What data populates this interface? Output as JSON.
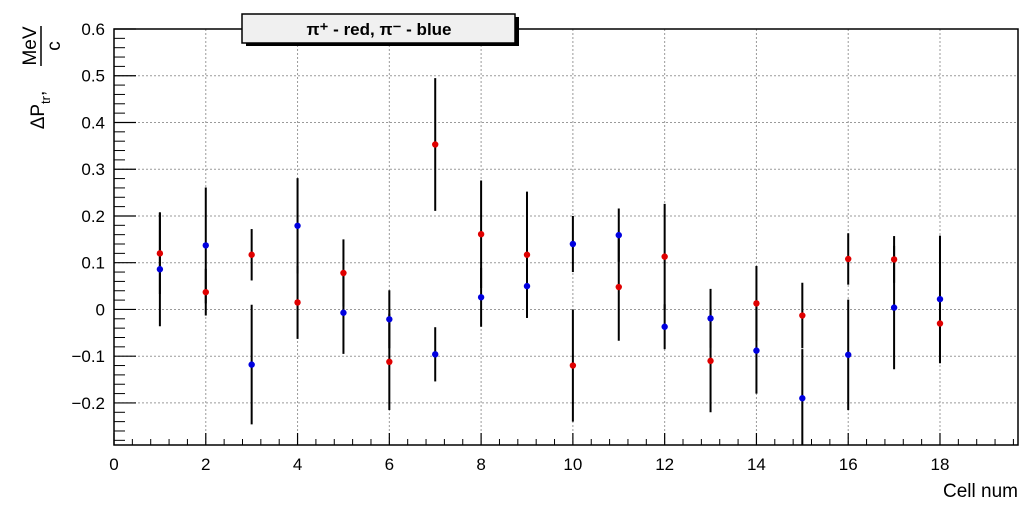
{
  "chart_data": {
    "type": "scatter",
    "title": "",
    "legend_text": "π⁺ - red,  π⁻ - blue",
    "xlabel": "Cell num",
    "ylabel": "ΔP",
    "ylabel_sub": "tr",
    "ylabel_unit_num": "MeV",
    "ylabel_unit_den": "c",
    "xlim": [
      0,
      19.7
    ],
    "ylim": [
      -0.29,
      0.6
    ],
    "x_ticks": [
      0,
      2,
      4,
      6,
      8,
      10,
      12,
      14,
      16,
      18
    ],
    "x_tick_labels": [
      "0",
      "2",
      "4",
      "6",
      "8",
      "10",
      "12",
      "14",
      "16",
      "18"
    ],
    "y_ticks": [
      -0.2,
      -0.1,
      0,
      0.1,
      0.2,
      0.3,
      0.4,
      0.5,
      0.6
    ],
    "y_tick_labels": [
      "−0.2",
      "−0.1",
      "0",
      "0.1",
      "0.2",
      "0.3",
      "0.4",
      "0.5",
      "0.6"
    ],
    "grid": true,
    "series": [
      {
        "color": "#e00000",
        "x": [
          1,
          2,
          3,
          4,
          5,
          6,
          7,
          8,
          9,
          10,
          11,
          12,
          13,
          14,
          15,
          16,
          17,
          18
        ],
        "y": [
          0.12,
          0.037,
          0.117,
          0.015,
          0.078,
          -0.112,
          0.353,
          0.161,
          0.117,
          -0.12,
          0.048,
          0.113,
          -0.11,
          0.013,
          -0.013,
          0.108,
          0.107,
          -0.03
        ],
        "err": [
          0.087,
          0.05,
          0.055,
          0.078,
          0.072,
          0.103,
          0.142,
          0.115,
          0.135,
          0.12,
          0.115,
          0.113,
          0.11,
          0.08,
          0.07,
          0.055,
          0.05,
          0.085
        ]
      },
      {
        "color": "#0000e0",
        "x": [
          1,
          2,
          3,
          4,
          5,
          6,
          7,
          8,
          9,
          10,
          11,
          12,
          13,
          14,
          15,
          16,
          17,
          18
        ],
        "y": [
          0.086,
          0.137,
          -0.118,
          0.179,
          -0.007,
          -0.021,
          -0.096,
          0.026,
          0.05,
          0.14,
          0.159,
          -0.037,
          -0.019,
          -0.088,
          -0.19,
          -0.097,
          0.004,
          0.022
        ],
        "err": [
          0.122,
          0.124,
          0.128,
          0.102,
          0.088,
          0.062,
          0.058,
          0.063,
          0.068,
          0.06,
          0.057,
          0.048,
          0.063,
          0.092,
          0.105,
          0.118,
          0.132,
          0.136
        ]
      }
    ]
  }
}
